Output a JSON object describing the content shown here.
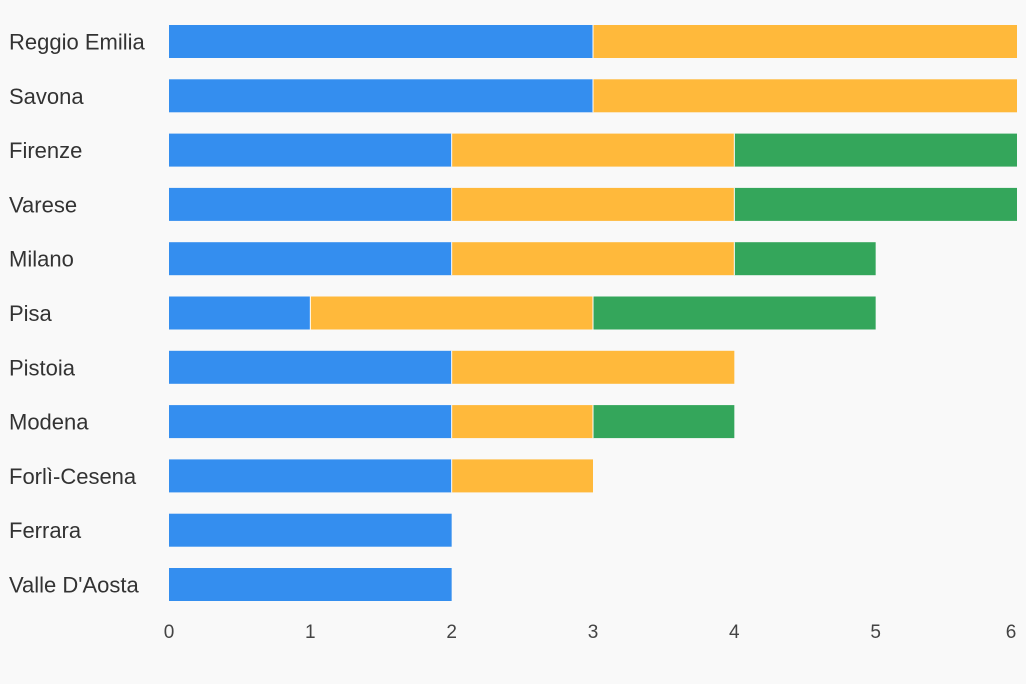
{
  "chart_data": {
    "type": "bar",
    "orientation": "horizontal",
    "stacked": true,
    "title": "",
    "xlabel": "",
    "ylabel": "",
    "xlim": [
      0,
      6
    ],
    "x_ticks": [
      "0",
      "1",
      "2",
      "3",
      "4",
      "5",
      "6"
    ],
    "grid": false,
    "legend": "none",
    "categories": [
      "Reggio Emilia",
      "Savona",
      "Firenze",
      "Varese",
      "Milano",
      "Pisa",
      "Pistoia",
      "Modena",
      "Forlì-Cesena",
      "Ferrara",
      "Valle D'Aosta"
    ],
    "series": [
      {
        "color": "#348eef",
        "values": [
          3,
          3,
          2,
          2,
          2,
          1,
          2,
          2,
          2,
          2,
          2
        ]
      },
      {
        "color": "#ffb93b",
        "values": [
          3,
          3,
          2,
          2,
          2,
          2,
          2,
          1,
          1,
          0,
          0
        ]
      },
      {
        "color": "#34a65b",
        "values": [
          0,
          0,
          2,
          2,
          1,
          2,
          0,
          1,
          0,
          0,
          0
        ]
      }
    ]
  },
  "colors": {
    "background": "#f9f9f9",
    "label_text": "#333333",
    "tick_text": "#444444"
  }
}
